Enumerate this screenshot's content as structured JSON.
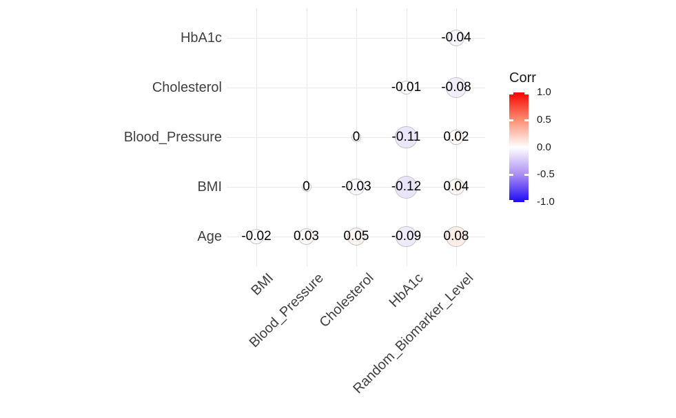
{
  "chart_data": {
    "type": "heatmap",
    "subtype": "correlation-bubble-upper-triangle",
    "title": "",
    "xlabel": "",
    "ylabel": "",
    "grid": true,
    "legend_position": "right",
    "x_categories": [
      "BMI",
      "Blood_Pressure",
      "Cholesterol",
      "HbA1c",
      "Random_Biomarker_Level"
    ],
    "y_categories": [
      "HbA1c",
      "Cholesterol",
      "Blood_Pressure",
      "BMI",
      "Age"
    ],
    "cells": [
      {
        "row": "HbA1c",
        "col": "Random_Biomarker_Level",
        "value": -0.04,
        "label": "-0.04"
      },
      {
        "row": "Cholesterol",
        "col": "HbA1c",
        "value": -0.01,
        "label": "-0.01"
      },
      {
        "row": "Cholesterol",
        "col": "Random_Biomarker_Level",
        "value": -0.08,
        "label": "-0.08"
      },
      {
        "row": "Blood_Pressure",
        "col": "Cholesterol",
        "value": 0,
        "label": "0"
      },
      {
        "row": "Blood_Pressure",
        "col": "HbA1c",
        "value": -0.11,
        "label": "-0.11"
      },
      {
        "row": "Blood_Pressure",
        "col": "Random_Biomarker_Level",
        "value": 0.02,
        "label": "0.02"
      },
      {
        "row": "BMI",
        "col": "Blood_Pressure",
        "value": 0,
        "label": "0"
      },
      {
        "row": "BMI",
        "col": "Cholesterol",
        "value": -0.03,
        "label": "-0.03"
      },
      {
        "row": "BMI",
        "col": "HbA1c",
        "value": -0.12,
        "label": "-0.12"
      },
      {
        "row": "BMI",
        "col": "Random_Biomarker_Level",
        "value": 0.04,
        "label": "0.04"
      },
      {
        "row": "Age",
        "col": "BMI",
        "value": -0.02,
        "label": "-0.02"
      },
      {
        "row": "Age",
        "col": "Blood_Pressure",
        "value": 0.03,
        "label": "0.03"
      },
      {
        "row": "Age",
        "col": "Cholesterol",
        "value": 0.05,
        "label": "0.05"
      },
      {
        "row": "Age",
        "col": "HbA1c",
        "value": -0.09,
        "label": "-0.09"
      },
      {
        "row": "Age",
        "col": "Random_Biomarker_Level",
        "value": 0.08,
        "label": "0.08"
      }
    ],
    "legend": {
      "title": "Corr",
      "tick_labels": [
        "1.0",
        "0.5",
        "0.0",
        "-0.5",
        "-1.0"
      ],
      "tick_values": [
        1.0,
        0.5,
        0.0,
        -0.5,
        -1.0
      ],
      "range": [
        -1.0,
        1.0
      ],
      "color_high": "#F70400",
      "color_mid": "#FFFFFF",
      "color_low": "#1D0AF7"
    },
    "colors": {
      "grid": "#E9E9E9",
      "axis_text": "#404040",
      "cell_text": "#000000",
      "circle_border": "#C3C3C3",
      "background": "#FFFFFF"
    }
  }
}
